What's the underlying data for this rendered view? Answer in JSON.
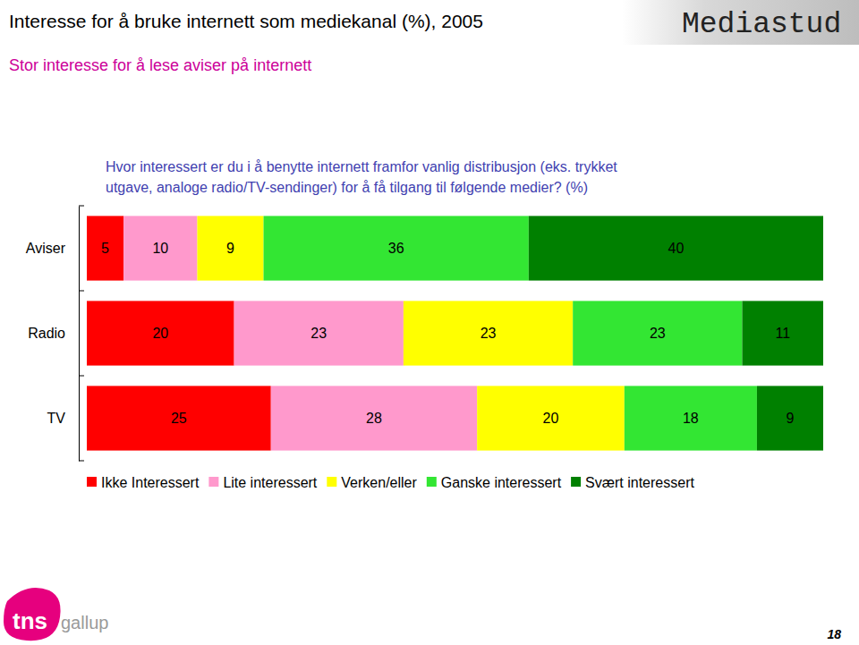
{
  "chart_data": {
    "type": "bar",
    "orientation": "horizontal",
    "stacked": true,
    "data_labels": true,
    "tick_labels": "y",
    "title": "Interesse for å bruke internett som mediekanal (%), 2005",
    "subtitle": "Stor interesse for å lese aviser på internett",
    "annotations": [
      "Hvor interessert er du i å benytte internett framfor vanlig distribusjon (eks. trykket",
      "utgave, analoge radio/TV-sendinger) for å få tilgang til følgende medier? (%)",
      "Mediastud",
      "tns",
      "gallup",
      "18"
    ],
    "legend": "bottom",
    "categories": [
      "Aviser",
      "Radio",
      "TV"
    ],
    "xlim": [
      0,
      100
    ],
    "series": [
      {
        "name": "Ikke Interessert",
        "color": "#ff0000",
        "values": [
          5,
          20,
          25
        ]
      },
      {
        "name": "Lite interessert",
        "color": "#ff99cc",
        "values": [
          10,
          23,
          28
        ]
      },
      {
        "name": "Verken/eller",
        "color": "#ffff00",
        "values": [
          9,
          23,
          20
        ]
      },
      {
        "name": "Ganske interessert",
        "color": "#33e633",
        "values": [
          36,
          23,
          18
        ]
      },
      {
        "name": "Svært interessert",
        "color": "#008000",
        "values": [
          40,
          11,
          9
        ]
      }
    ]
  }
}
